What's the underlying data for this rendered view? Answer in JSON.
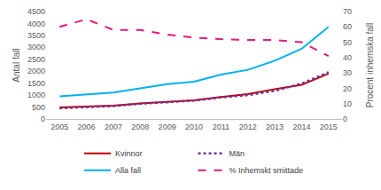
{
  "chart_data": {
    "type": "line",
    "y_label": "Antal fall",
    "y2_label": "Procent inhemska fall",
    "categories": [
      "2005",
      "2006",
      "2007",
      "2008",
      "2009",
      "2010",
      "2011",
      "2012",
      "2013",
      "2014",
      "2015"
    ],
    "series": [
      {
        "name": "Kvinnor",
        "color": "#c00000",
        "line_style": "solid",
        "values": [
          480,
          520,
          560,
          650,
          720,
          780,
          920,
          1040,
          1250,
          1430,
          1900
        ]
      },
      {
        "name": "Män",
        "color": "#7030a0",
        "line_style": "dotted",
        "values": [
          450,
          500,
          540,
          640,
          710,
          770,
          900,
          1000,
          1180,
          1480,
          1960
        ]
      },
      {
        "name": "Alla fall",
        "color": "#00b0f0",
        "line_style": "solid",
        "values": [
          950,
          1030,
          1110,
          1280,
          1460,
          1560,
          1860,
          2060,
          2440,
          2940,
          3860
        ]
      },
      {
        "name": "% Inhemskt smittade",
        "color": "#e6197a",
        "line_style": "dashed",
        "axis": "y2",
        "values": [
          60,
          65,
          58,
          58,
          55,
          53,
          52,
          51.5,
          51.5,
          50,
          41
        ]
      }
    ],
    "ylim": [
      0,
      4500
    ],
    "yticks": [
      0,
      500,
      1000,
      1500,
      2000,
      2500,
      3000,
      3500,
      4000,
      4500
    ],
    "y2lim": [
      0,
      70
    ],
    "y2ticks": [
      0,
      10,
      20,
      30,
      40,
      50,
      60,
      70
    ],
    "grid": false,
    "legend": "bottom"
  }
}
